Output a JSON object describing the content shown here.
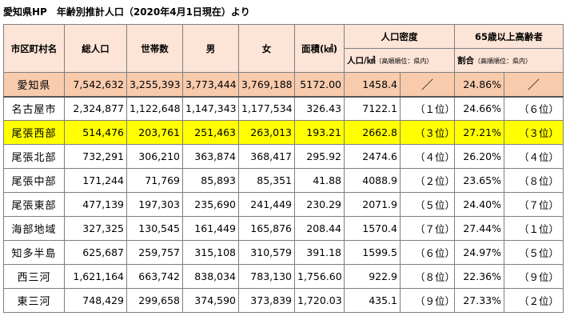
{
  "page_title": "愛知県HP　年齢別推計人口（2020年4月1日現在）より",
  "headers": {
    "area": "市区町村名",
    "population": "総人口",
    "households": "世帯数",
    "male": "男",
    "female": "女",
    "land_area": "面積(㎢)",
    "density_group": "人口密度",
    "density_sub": "人口/㎢",
    "density_note": "（高順順位：県内）",
    "elderly_group": "65歳以上高齢者",
    "elderly_sub": "割合",
    "elderly_note": "（高順順位：県内）"
  },
  "rows": [
    {
      "name": "愛知県",
      "population": "7,542,632",
      "households": "3,255,393",
      "male": "3,773,444",
      "female": "3,769,188",
      "area": "5172.00",
      "density": "1458.4",
      "density_rank": "／",
      "elderly": "24.86%",
      "elderly_rank": "／"
    },
    {
      "name": "名古屋市",
      "population": "2,324,877",
      "households": "1,122,648",
      "male": "1,147,343",
      "female": "1,177,534",
      "area": "326.43",
      "density": "7122.1",
      "density_rank": "（１位）",
      "elderly": "24.66%",
      "elderly_rank": "（６位）"
    },
    {
      "name": "尾張西部",
      "population": "514,476",
      "households": "203,761",
      "male": "251,463",
      "female": "263,013",
      "area": "193.21",
      "density": "2662.8",
      "density_rank": "（３位）",
      "elderly": "27.21%",
      "elderly_rank": "（３位）"
    },
    {
      "name": "尾張北部",
      "population": "732,291",
      "households": "306,210",
      "male": "363,874",
      "female": "368,417",
      "area": "295.92",
      "density": "2474.6",
      "density_rank": "（４位）",
      "elderly": "26.20%",
      "elderly_rank": "（４位）"
    },
    {
      "name": "尾張中部",
      "population": "171,244",
      "households": "71,769",
      "male": "85,893",
      "female": "85,351",
      "area": "41.88",
      "density": "4088.9",
      "density_rank": "（２位）",
      "elderly": "23.65%",
      "elderly_rank": "（８位）"
    },
    {
      "name": "尾張東部",
      "population": "477,139",
      "households": "197,303",
      "male": "235,690",
      "female": "241,449",
      "area": "230.29",
      "density": "2071.9",
      "density_rank": "（５位）",
      "elderly": "24.40%",
      "elderly_rank": "（７位）"
    },
    {
      "name": "海部地域",
      "population": "327,325",
      "households": "130,545",
      "male": "161,449",
      "female": "165,876",
      "area": "208.44",
      "density": "1570.4",
      "density_rank": "（７位）",
      "elderly": "27.44%",
      "elderly_rank": "（１位）"
    },
    {
      "name": "知多半島",
      "population": "625,687",
      "households": "259,757",
      "male": "315,108",
      "female": "310,579",
      "area": "391.18",
      "density": "1599.5",
      "density_rank": "（６位）",
      "elderly": "24.97%",
      "elderly_rank": "（５位）"
    },
    {
      "name": "西三河",
      "population": "1,621,164",
      "households": "663,742",
      "male": "838,034",
      "female": "783,130",
      "area": "1,756.60",
      "density": "922.9",
      "density_rank": "（８位）",
      "elderly": "22.36%",
      "elderly_rank": "（９位）"
    },
    {
      "name": "東三河",
      "population": "748,429",
      "households": "299,658",
      "male": "374,590",
      "female": "373,839",
      "area": "1,720.03",
      "density": "435.1",
      "density_rank": "（９位）",
      "elderly": "27.33%",
      "elderly_rank": "（２位）"
    }
  ],
  "colors": {
    "header_bg": "#fce4d6",
    "prefecture_row_bg": "#f8cbad",
    "highlight_row_bg": "#ffff00",
    "border": "#7f7f7f"
  },
  "highlighted_row": "尾張西部"
}
